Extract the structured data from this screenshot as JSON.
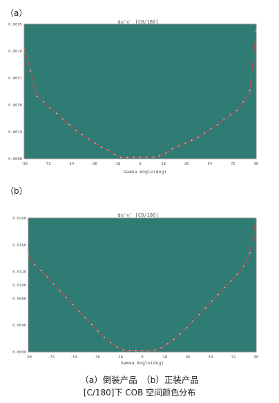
{
  "panel_labels": [
    "（a）",
    "（b）"
  ],
  "caption_line1": "（a）倒装产品　（b）正装产品",
  "caption_line2": "[C/180]下 COB 空间颜色分布",
  "colors": {
    "plot_bg": "#2F7C74",
    "line": "#B05050",
    "marker": "#F0D8D8",
    "frame": "#8A8A8A"
  },
  "chart_data": [
    {
      "type": "line",
      "title": "du'v' [C0/180]",
      "xlabel": "Gamma Angle(deg)",
      "ylabel": "",
      "xlim": [
        -90,
        90
      ],
      "ylim": [
        0,
        0.0095
      ],
      "x_ticks": [
        "-90",
        "-72",
        "-54",
        "-36",
        "-18",
        "0",
        "18",
        "36",
        "54",
        "72",
        "90"
      ],
      "y_ticks": [
        "0.0000",
        "0.0019",
        "0.0038",
        "0.0057",
        "0.0076",
        "0.0095"
      ],
      "x": [
        -90,
        -85,
        -80,
        -75,
        -70,
        -65,
        -60,
        -55,
        -50,
        -45,
        -40,
        -35,
        -30,
        -25,
        -20,
        -15,
        -10,
        -5,
        0,
        5,
        10,
        15,
        20,
        25,
        30,
        35,
        40,
        45,
        50,
        55,
        60,
        65,
        70,
        75,
        80,
        85,
        90
      ],
      "y": [
        0.0078,
        0.0062,
        0.0044,
        0.004,
        0.0036,
        0.0032,
        0.0028,
        0.0024,
        0.002,
        0.0017,
        0.0014,
        0.0011,
        0.0008,
        0.0006,
        0.0003,
        0.0001,
        0.0001,
        0.0001,
        0.0001,
        0.0001,
        0.0001,
        0.0002,
        0.0004,
        0.0007,
        0.0009,
        0.0011,
        0.0013,
        0.0015,
        0.0018,
        0.0021,
        0.0024,
        0.0028,
        0.0031,
        0.0034,
        0.004,
        0.0048,
        0.009
      ]
    },
    {
      "type": "line",
      "title": "du'v' [C0/180]",
      "xlabel": "Gamma Angle(deg)",
      "ylabel": "",
      "xlim": [
        -90,
        90
      ],
      "ylim": [
        0,
        0.02
      ],
      "x_ticks": [
        "-90",
        "-72",
        "-54",
        "-36",
        "-18",
        "0",
        "18",
        "36",
        "54",
        "72",
        "90"
      ],
      "y_ticks": [
        "0.0000",
        "0.0040",
        "0.0080",
        "0.0100",
        "0.0120",
        "0.0160",
        "0.0200"
      ],
      "x": [
        -90,
        -85,
        -80,
        -75,
        -70,
        -65,
        -60,
        -55,
        -50,
        -45,
        -40,
        -35,
        -30,
        -25,
        -20,
        -15,
        -10,
        -5,
        0,
        5,
        10,
        15,
        20,
        25,
        30,
        35,
        40,
        45,
        50,
        55,
        60,
        65,
        70,
        75,
        80,
        85,
        90
      ],
      "y": [
        0.0145,
        0.013,
        0.0122,
        0.0112,
        0.0101,
        0.0091,
        0.0081,
        0.0071,
        0.0061,
        0.0051,
        0.0041,
        0.0031,
        0.0022,
        0.0014,
        0.0007,
        0.0003,
        0.0002,
        0.0002,
        0.0002,
        0.0002,
        0.0003,
        0.0006,
        0.0012,
        0.0019,
        0.0027,
        0.0036,
        0.0046,
        0.0056,
        0.0066,
        0.0076,
        0.0086,
        0.0096,
        0.0106,
        0.0116,
        0.0128,
        0.0148,
        0.02
      ]
    }
  ]
}
